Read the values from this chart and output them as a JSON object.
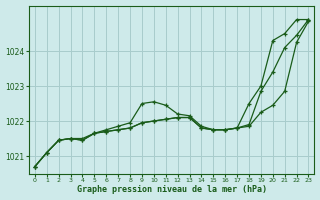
{
  "title": "Graphe pression niveau de la mer (hPa)",
  "background_color": "#ceeaea",
  "grid_color": "#a8cccc",
  "line_color": "#1a5c1a",
  "xlim": [
    -0.5,
    23.5
  ],
  "ylim": [
    1020.5,
    1025.3
  ],
  "yticks": [
    1021,
    1022,
    1023,
    1024
  ],
  "xticks": [
    0,
    1,
    2,
    3,
    4,
    5,
    6,
    7,
    8,
    9,
    10,
    11,
    12,
    13,
    14,
    15,
    16,
    17,
    18,
    19,
    20,
    21,
    22,
    23
  ],
  "series": [
    [
      1020.7,
      1021.1,
      1021.45,
      1021.5,
      1021.5,
      1021.65,
      1021.75,
      1021.85,
      1021.95,
      1022.5,
      1022.55,
      1022.45,
      1022.2,
      1022.15,
      1021.85,
      1021.75,
      1021.75,
      1021.8,
      1021.9,
      1022.85,
      1023.4,
      1024.1,
      1024.45,
      1024.9
    ],
    [
      1020.7,
      1021.1,
      1021.45,
      1021.5,
      1021.45,
      1021.65,
      1021.7,
      1021.75,
      1021.8,
      1021.95,
      1022.0,
      1022.05,
      1022.1,
      1022.1,
      1021.8,
      1021.75,
      1021.75,
      1021.8,
      1021.85,
      1022.25,
      1022.45,
      1022.85,
      1024.25,
      1024.85
    ],
    [
      1020.7,
      1021.1,
      1021.45,
      1021.5,
      1021.45,
      1021.65,
      1021.7,
      1021.75,
      1021.8,
      1021.95,
      1022.0,
      1022.05,
      1022.1,
      1022.1,
      1021.8,
      1021.75,
      1021.75,
      1021.8,
      1022.5,
      1023.0,
      1024.3,
      1024.5,
      1024.9,
      1024.9
    ]
  ]
}
